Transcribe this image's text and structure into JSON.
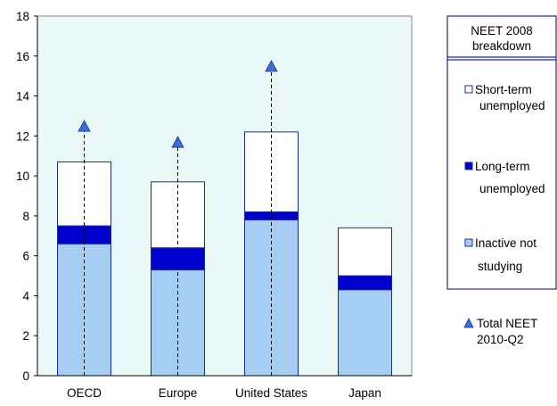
{
  "chart_data": {
    "type": "bar",
    "stacked": true,
    "categories": [
      "OECD",
      "Europe",
      "United States",
      "Japan"
    ],
    "series": [
      {
        "name": "Inactive not studying",
        "values": [
          6.6,
          5.3,
          7.8,
          4.3
        ],
        "color": "#a6cdf4"
      },
      {
        "name": "Long-term unemployed",
        "values": [
          0.9,
          1.1,
          0.4,
          0.7
        ],
        "color": "#0000cc"
      },
      {
        "name": "Short-term unemployed",
        "values": [
          3.2,
          3.3,
          4.0,
          2.4
        ],
        "color": "#ffffff"
      }
    ],
    "marker_series": {
      "name": "Total NEET 2010-Q2",
      "values": [
        12.5,
        11.7,
        15.5,
        null
      ],
      "color": "#3a6fd6"
    },
    "ylim": [
      0,
      18
    ],
    "yticks": [
      "0",
      "2",
      "4",
      "6",
      "8",
      "10",
      "12",
      "14",
      "16",
      "18"
    ],
    "plot_background": "#eaf8f8",
    "grid": false
  },
  "legend": {
    "title_line1": "NEET 2008",
    "title_line2": "breakdown",
    "short_term_line1": "Short-term",
    "short_term_line2": "unemployed",
    "long_term_line1": "Long-term",
    "long_term_line2": "unemployed",
    "inactive_line1": "Inactive not",
    "inactive_line2": "studying",
    "total_line1": "Total NEET",
    "total_line2": "2010-Q2"
  }
}
